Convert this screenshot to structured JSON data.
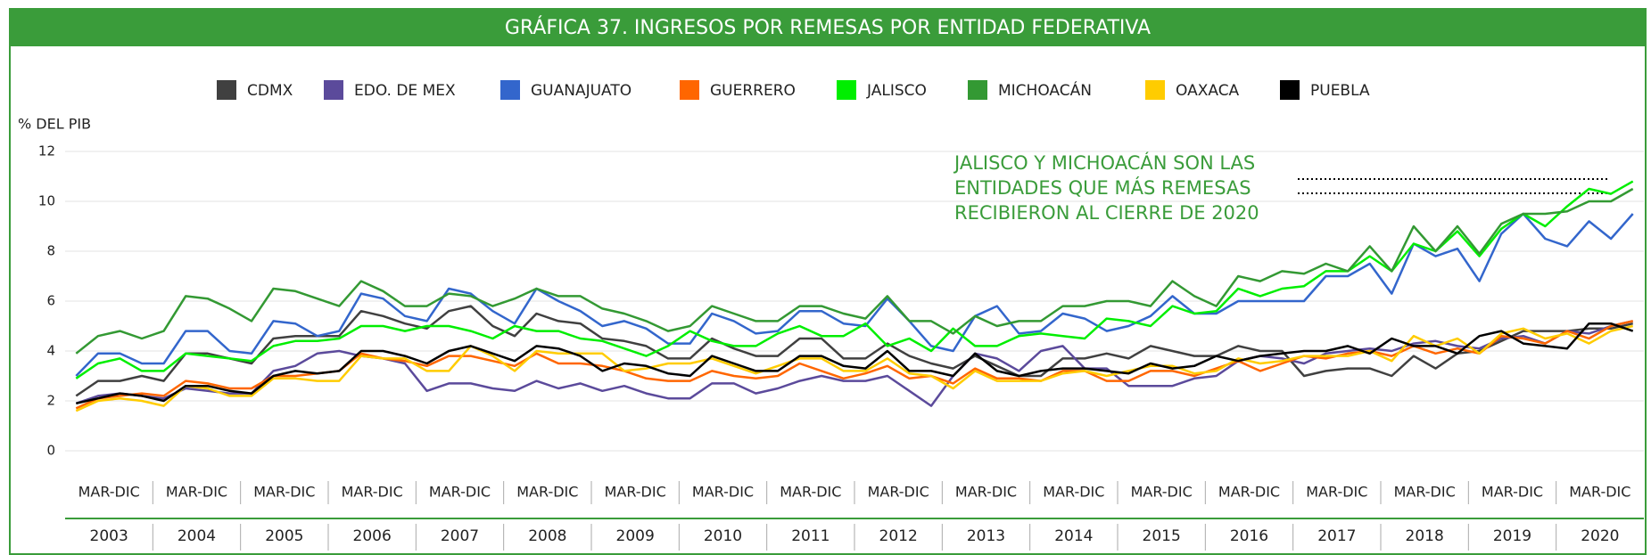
{
  "chart_data": {
    "type": "line",
    "title": "GRÁFICA 37. INGRESOS POR REMESAS POR ENTIDAD FEDERATIVA",
    "y_label": "% DEL PIB",
    "annotation": [
      "JALISCO Y MICHOACÁN SON LAS",
      "ENTIDADES QUE MÁS REMESAS",
      "RECIBIERON AL CIERRE DE 2020"
    ],
    "periods": [
      "MAR-DIC",
      "MAR-DIC",
      "MAR-DIC",
      "MAR-DIC",
      "MAR-DIC",
      "MAR-DIC",
      "MAR-DIC",
      "MAR-DIC",
      "MAR-DIC",
      "MAR-DIC",
      "MAR-DIC",
      "MAR-DIC",
      "MAR-DIC",
      "MAR-DIC",
      "MAR-DIC",
      "MAR-DIC",
      "MAR-DIC",
      "MAR-DIC"
    ],
    "years": [
      "2003",
      "2004",
      "2005",
      "2006",
      "2007",
      "2008",
      "2009",
      "2010",
      "2011",
      "2012",
      "2013",
      "2014",
      "2015",
      "2016",
      "2017",
      "2018",
      "2019",
      "2020"
    ],
    "categories": [
      null,
      null,
      null,
      null,
      null,
      null,
      null,
      null,
      null,
      null,
      null,
      null,
      null,
      null,
      null,
      null,
      null,
      null,
      null,
      null,
      null,
      null,
      null,
      null,
      null,
      null,
      null,
      null,
      null,
      null,
      null,
      null,
      null,
      null,
      null,
      null,
      null,
      null,
      null,
      null,
      null,
      null,
      null,
      null,
      null,
      null,
      null,
      null,
      null,
      null,
      null,
      null,
      null,
      null,
      null,
      null,
      null,
      null,
      null,
      null,
      null,
      null,
      null,
      null,
      null,
      null,
      null,
      null,
      null,
      null,
      null,
      null
    ],
    "ylim": [
      0,
      12
    ],
    "yticks": [
      0,
      2,
      4,
      6,
      8,
      10,
      12
    ],
    "grid": true,
    "series": [
      {
        "name": "CDMX",
        "color": "#404040",
        "values": [
          2.2,
          2.8,
          2.8,
          3.0,
          2.8,
          3.9,
          3.9,
          3.7,
          3.5,
          4.5,
          4.6,
          4.6,
          4.6,
          5.6,
          5.4,
          5.1,
          4.9,
          5.6,
          5.8,
          5.0,
          4.6,
          5.5,
          5.2,
          5.1,
          4.5,
          4.4,
          4.2,
          3.7,
          3.7,
          4.5,
          4.1,
          3.8,
          3.8,
          4.5,
          4.5,
          3.7,
          3.7,
          4.3,
          3.8,
          3.5,
          3.3,
          3.8,
          3.4,
          3.0,
          3.0,
          3.7,
          3.7,
          3.9,
          3.7,
          4.2,
          4.0,
          3.8,
          3.8,
          4.2,
          4.0,
          4.0,
          3.0,
          3.2,
          3.3,
          3.3,
          3.0,
          3.8,
          3.3,
          3.9,
          4.0,
          4.4,
          4.8,
          4.8,
          4.8,
          4.9,
          4.9,
          5.1
        ]
      },
      {
        "name": "EDO. DE MEX",
        "color": "#5b4a9b",
        "values": [
          1.9,
          2.2,
          2.3,
          2.2,
          2.1,
          2.5,
          2.4,
          2.3,
          2.3,
          3.2,
          3.4,
          3.9,
          4.0,
          3.8,
          3.7,
          3.5,
          2.4,
          2.7,
          2.7,
          2.5,
          2.4,
          2.8,
          2.5,
          2.7,
          2.4,
          2.6,
          2.3,
          2.1,
          2.1,
          2.7,
          2.7,
          2.3,
          2.5,
          2.8,
          3.0,
          2.8,
          2.8,
          3.0,
          2.4,
          1.8,
          3.0,
          3.9,
          3.7,
          3.2,
          4.0,
          4.2,
          3.3,
          3.3,
          2.6,
          2.6,
          2.6,
          2.9,
          3.0,
          3.6,
          3.8,
          3.7,
          3.5,
          3.9,
          4.0,
          4.1,
          4.0,
          4.3,
          4.4,
          4.2,
          4.1,
          4.5,
          4.6,
          4.3,
          4.8,
          4.7,
          5.0,
          5.2
        ]
      },
      {
        "name": "GUANAJUATO",
        "color": "#3366cc",
        "values": [
          3.0,
          3.9,
          3.9,
          3.5,
          3.5,
          4.8,
          4.8,
          4.0,
          3.9,
          5.2,
          5.1,
          4.6,
          4.8,
          6.3,
          6.1,
          5.4,
          5.2,
          6.5,
          6.3,
          5.6,
          5.1,
          6.5,
          6.0,
          5.6,
          5.0,
          5.2,
          4.9,
          4.3,
          4.3,
          5.5,
          5.2,
          4.7,
          4.8,
          5.6,
          5.6,
          5.1,
          5.0,
          6.1,
          5.2,
          4.2,
          4.0,
          5.4,
          5.8,
          4.7,
          4.8,
          5.5,
          5.3,
          4.8,
          5.0,
          5.4,
          6.2,
          5.5,
          5.5,
          6.0,
          6.0,
          6.0,
          6.0,
          7.0,
          7.0,
          7.5,
          6.3,
          8.3,
          7.8,
          8.1,
          6.8,
          8.7,
          9.5,
          8.5,
          8.2,
          9.2,
          8.5,
          9.5
        ]
      },
      {
        "name": "GUERRERO",
        "color": "#ff6600",
        "values": [
          1.7,
          2.1,
          2.2,
          2.3,
          2.2,
          2.8,
          2.7,
          2.5,
          2.5,
          3.0,
          3.0,
          3.1,
          3.2,
          3.9,
          3.7,
          3.6,
          3.4,
          3.8,
          3.8,
          3.6,
          3.4,
          3.9,
          3.5,
          3.5,
          3.4,
          3.2,
          2.9,
          2.8,
          2.8,
          3.2,
          3.0,
          2.9,
          3.0,
          3.5,
          3.2,
          2.9,
          3.1,
          3.4,
          2.9,
          3.0,
          2.7,
          3.3,
          2.9,
          2.9,
          2.8,
          3.2,
          3.2,
          2.8,
          2.8,
          3.2,
          3.2,
          3.0,
          3.3,
          3.6,
          3.2,
          3.5,
          3.8,
          3.7,
          3.9,
          4.0,
          3.8,
          4.2,
          3.9,
          4.1,
          3.9,
          4.6,
          4.5,
          4.3,
          4.8,
          4.5,
          5.0,
          5.2
        ]
      },
      {
        "name": "JALISCO",
        "color": "#00ee00",
        "values": [
          2.9,
          3.5,
          3.7,
          3.2,
          3.2,
          3.9,
          3.8,
          3.7,
          3.6,
          4.2,
          4.4,
          4.4,
          4.5,
          5.0,
          5.0,
          4.8,
          5.0,
          5.0,
          4.8,
          4.5,
          5.0,
          4.8,
          4.8,
          4.5,
          4.4,
          4.1,
          3.8,
          4.2,
          4.8,
          4.4,
          4.2,
          4.2,
          4.7,
          5.0,
          4.6,
          4.6,
          5.1,
          4.2,
          4.5,
          4.0,
          4.9,
          4.2,
          4.2,
          4.6,
          4.7,
          4.6,
          4.5,
          5.3,
          5.2,
          5.0,
          5.8,
          5.5,
          5.6,
          6.5,
          6.2,
          6.5,
          6.6,
          7.2,
          7.2,
          7.8,
          7.2,
          8.3,
          8.0,
          8.8,
          7.8,
          8.9,
          9.5,
          9.0,
          9.8,
          10.5,
          10.3,
          10.8
        ]
      },
      {
        "name": "MICHOACÁN",
        "color": "#339933",
        "values": [
          3.9,
          4.6,
          4.8,
          4.5,
          4.8,
          6.2,
          6.1,
          5.7,
          5.2,
          6.5,
          6.4,
          6.1,
          5.8,
          6.8,
          6.4,
          5.8,
          5.8,
          6.3,
          6.2,
          5.8,
          6.1,
          6.5,
          6.2,
          6.2,
          5.7,
          5.5,
          5.2,
          4.8,
          5.0,
          5.8,
          5.5,
          5.2,
          5.2,
          5.8,
          5.8,
          5.5,
          5.3,
          6.2,
          5.2,
          5.2,
          4.7,
          5.4,
          5.0,
          5.2,
          5.2,
          5.8,
          5.8,
          6.0,
          6.0,
          5.8,
          6.8,
          6.2,
          5.8,
          7.0,
          6.8,
          7.2,
          7.1,
          7.5,
          7.2,
          8.2,
          7.2,
          9.0,
          8.0,
          9.0,
          7.9,
          9.1,
          9.5,
          9.5,
          9.6,
          10.0,
          10.0,
          10.5
        ]
      },
      {
        "name": "OAXACA",
        "color": "#ffcc00",
        "values": [
          1.6,
          2.0,
          2.1,
          2.0,
          1.8,
          2.6,
          2.5,
          2.2,
          2.2,
          2.9,
          2.9,
          2.8,
          2.8,
          3.8,
          3.7,
          3.7,
          3.2,
          3.2,
          4.2,
          3.8,
          3.2,
          4.0,
          3.9,
          3.9,
          3.9,
          3.2,
          3.3,
          3.5,
          3.5,
          3.7,
          3.4,
          3.1,
          3.4,
          3.7,
          3.7,
          3.2,
          3.2,
          3.7,
          3.1,
          3.0,
          2.5,
          3.2,
          2.8,
          2.8,
          2.8,
          3.1,
          3.2,
          3.0,
          3.2,
          3.4,
          3.4,
          3.1,
          3.2,
          3.7,
          3.5,
          3.6,
          3.8,
          3.8,
          3.8,
          4.0,
          3.6,
          4.6,
          4.2,
          4.5,
          3.9,
          4.7,
          4.9,
          4.5,
          4.7,
          4.3,
          4.8,
          5.0
        ]
      },
      {
        "name": "PUEBLA",
        "color": "#000000",
        "values": [
          1.9,
          2.1,
          2.3,
          2.2,
          2.0,
          2.6,
          2.6,
          2.4,
          2.3,
          3.0,
          3.2,
          3.1,
          3.2,
          4.0,
          4.0,
          3.8,
          3.5,
          4.0,
          4.2,
          3.9,
          3.6,
          4.2,
          4.1,
          3.8,
          3.2,
          3.5,
          3.4,
          3.1,
          3.0,
          3.8,
          3.5,
          3.2,
          3.2,
          3.8,
          3.8,
          3.4,
          3.3,
          4.0,
          3.2,
          3.2,
          3.0,
          3.9,
          3.2,
          3.0,
          3.2,
          3.3,
          3.3,
          3.2,
          3.1,
          3.5,
          3.3,
          3.4,
          3.8,
          3.6,
          3.8,
          3.9,
          4.0,
          4.0,
          4.2,
          3.9,
          4.5,
          4.2,
          4.2,
          3.9,
          4.6,
          4.8,
          4.3,
          4.2,
          4.1,
          5.1,
          5.1,
          4.8
        ]
      }
    ]
  }
}
